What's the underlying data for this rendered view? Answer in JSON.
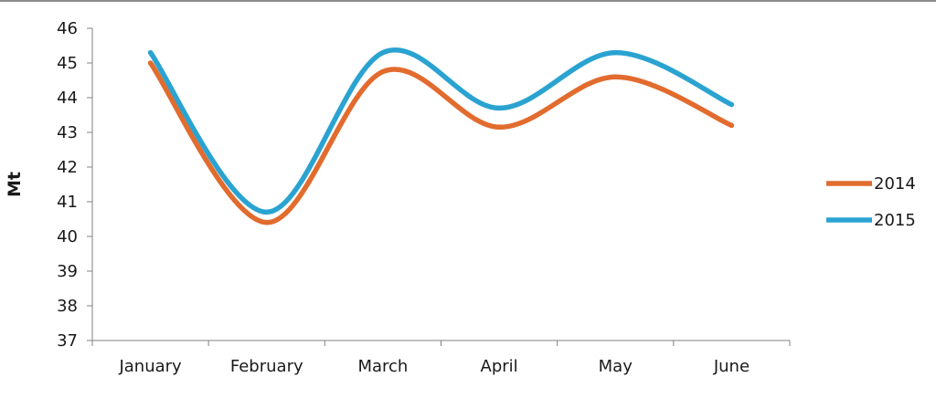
{
  "chart_data": {
    "type": "line",
    "title": "",
    "xlabel": "",
    "ylabel": "Mt",
    "ylim": [
      37,
      46
    ],
    "yticks": [
      "37",
      "38",
      "39",
      "40",
      "41",
      "42",
      "43",
      "44",
      "45",
      "46"
    ],
    "categories": [
      "January",
      "February",
      "March",
      "April",
      "May",
      "June"
    ],
    "smooth": true,
    "grid": false,
    "legend_position": "right",
    "series": [
      {
        "name": "2014",
        "color": "#e26b2e",
        "values": [
          45.0,
          40.4,
          44.75,
          43.15,
          44.6,
          43.2
        ]
      },
      {
        "name": "2015",
        "color": "#2aa3d1",
        "values": [
          45.3,
          40.7,
          45.3,
          43.7,
          45.3,
          43.8
        ]
      }
    ]
  }
}
